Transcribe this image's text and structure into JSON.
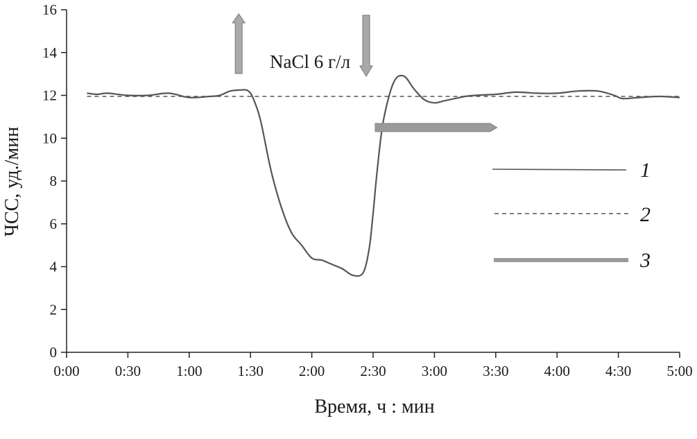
{
  "chart_data": {
    "type": "line",
    "xlabel": "Время, ч : мин",
    "ylabel": "ЧСС, уд./мин",
    "xlim": [
      0,
      300
    ],
    "ylim": [
      0,
      16
    ],
    "x_ticks": [
      0,
      30,
      60,
      90,
      120,
      150,
      180,
      210,
      240,
      270,
      300
    ],
    "x_tick_labels": [
      "0:00",
      "0:30",
      "1:00",
      "1:30",
      "2:00",
      "2:30",
      "3:00",
      "3:30",
      "4:00",
      "4:30",
      "5:00"
    ],
    "y_ticks": [
      0,
      2,
      4,
      6,
      8,
      10,
      12,
      14,
      16
    ],
    "y_tick_labels": [
      "0",
      "2",
      "4",
      "6",
      "8",
      "10",
      "12",
      "14",
      "16"
    ],
    "grid": false,
    "series": [
      {
        "name": "1",
        "style": "solid",
        "color": "#555555",
        "x": [
          10,
          15,
          20,
          30,
          40,
          50,
          60,
          70,
          75,
          80,
          85,
          88,
          90,
          92,
          95,
          100,
          105,
          110,
          115,
          120,
          125,
          130,
          135,
          140,
          145,
          148,
          150,
          152,
          155,
          160,
          165,
          170,
          175,
          180,
          185,
          190,
          195,
          200,
          210,
          220,
          230,
          240,
          250,
          260,
          268,
          272,
          280,
          290,
          300
        ],
        "y": [
          12.1,
          12.05,
          12.1,
          12.0,
          12.0,
          12.1,
          11.9,
          11.95,
          12.0,
          12.2,
          12.25,
          12.25,
          12.1,
          11.7,
          10.8,
          8.5,
          6.8,
          5.6,
          5.0,
          4.4,
          4.3,
          4.1,
          3.9,
          3.6,
          3.7,
          4.8,
          6.5,
          8.5,
          10.8,
          12.6,
          12.9,
          12.3,
          11.8,
          11.65,
          11.75,
          11.85,
          11.95,
          12.0,
          12.05,
          12.15,
          12.1,
          12.1,
          12.2,
          12.2,
          12.0,
          11.85,
          11.9,
          11.95,
          11.9
        ]
      },
      {
        "name": "2",
        "style": "dashed",
        "color": "#555555",
        "x": [
          10,
          300
        ],
        "y": [
          11.95,
          11.95
        ]
      }
    ],
    "markers": {
      "up_arrow_x": 90,
      "down_arrow_x": 150,
      "bar_3": {
        "x_start": 151,
        "x_end": 210,
        "y": 10.5
      }
    },
    "annotations": [
      {
        "text": "NaCl 6 г/л"
      }
    ],
    "legend": {
      "placement": "right",
      "entries": [
        {
          "label": "1",
          "style": "solid"
        },
        {
          "label": "2",
          "style": "dashed"
        },
        {
          "label": "3",
          "style": "thick-bar"
        }
      ]
    },
    "colors": {
      "line": "#555555",
      "bar": "#9a9a9a",
      "arrow_fill": "#a9a9a9"
    }
  }
}
